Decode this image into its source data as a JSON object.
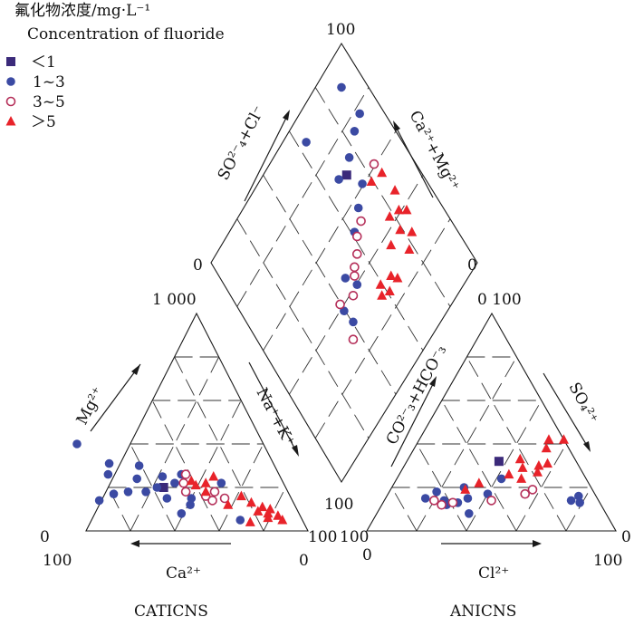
{
  "legend": {
    "title_cn": "氟化物浓度/mg·L⁻¹",
    "title_en": "Concentration of fluoride",
    "items": [
      {
        "label": "＜1",
        "symbol": "square",
        "color": "#3b2a7a"
      },
      {
        "label": "1~3",
        "symbol": "dot",
        "color": "#3b4aa3"
      },
      {
        "label": "3~5",
        "symbol": "open-circle",
        "color": "#b5305a"
      },
      {
        "label": "＞5",
        "symbol": "triangle",
        "color": "#e8232a"
      }
    ]
  },
  "labels": {
    "diamond_top": "100",
    "diamond_left": "0",
    "diamond_right": "0",
    "diamond_bottom": "100",
    "axis_so4cl": "SO²⁻₄+Cl⁻",
    "axis_camg": "Ca²⁺+Mg²⁺",
    "cat_top": "1 000",
    "cat_left_0": "0",
    "cat_right_100": "100",
    "cat_bottom_left": "100",
    "cat_bottom_right": "0",
    "cat_mg": "Mg²⁺",
    "cat_nak": "Na⁺+K⁺",
    "cat_ca": "Ca²⁺",
    "cat_title": "CATICNS",
    "an_top": "0 100",
    "an_left_100": "100",
    "an_right_0": "0",
    "an_bottom_left": "0",
    "an_bottom_right": "100",
    "an_co3": "CO²⁻₃+HCO⁻₃",
    "an_so4": "SO₄²⁺",
    "an_cl": "Cl²⁺",
    "an_title": "ANICNS"
  },
  "colors": {
    "lt1": "#3b2a7a",
    "c13": "#3b4aa3",
    "c35": "#b5305a",
    "gt5": "#e8232a"
  },
  "chart_data": {
    "type": "scatter",
    "subtype": "piper-trilinear",
    "series": [
      {
        "name": "＜1",
        "marker": "square",
        "color": "#3b2a7a",
        "cation_pct_ca_mg": [
          [
            55,
            20
          ]
        ],
        "anion_pct_cl_so4": [
          [
            37,
            32
          ]
        ],
        "diamond_pct_so4cl_camg": [
          [
            72,
            68
          ]
        ]
      },
      {
        "name": "1~3",
        "marker": "dot",
        "color": "#3b4aa3",
        "cation_pct_ca_mg": [
          [
            84,
            40
          ],
          [
            74,
            31
          ],
          [
            77,
            26
          ],
          [
            61,
            30
          ],
          [
            65,
            24
          ],
          [
            53,
            25
          ],
          [
            44,
            26
          ],
          [
            28,
            22
          ],
          [
            87,
            14
          ],
          [
            79,
            17
          ],
          [
            72,
            18
          ],
          [
            64,
            18
          ],
          [
            58,
            20
          ],
          [
            49,
            22
          ],
          [
            56,
            15
          ],
          [
            45,
            15
          ],
          [
            28,
            5
          ],
          [
            53,
            8
          ],
          [
            47,
            12
          ]
        ],
        "anion_pct_cl_so4": [
          [
            16,
            15
          ],
          [
            19,
            18
          ],
          [
            24,
            14
          ],
          [
            26,
            12
          ],
          [
            33,
            15
          ],
          [
            29,
            20
          ],
          [
            40,
            17
          ],
          [
            42,
            24
          ],
          [
            37,
            8
          ],
          [
            75,
            14
          ],
          [
            77,
            16
          ],
          [
            79,
            13
          ],
          [
            30,
            13
          ]
        ],
        "diamond_pct_so4cl_camg": [
          [
            64,
            91
          ],
          [
            91,
            77
          ],
          [
            85,
            75
          ],
          [
            77,
            71
          ],
          [
            68,
            70
          ],
          [
            76,
            60
          ],
          [
            69,
            56
          ],
          [
            62,
            52
          ],
          [
            48,
            45
          ],
          [
            40,
            38
          ],
          [
            51,
            39
          ],
          [
            41,
            32
          ],
          [
            90,
            90
          ]
        ]
      },
      {
        "name": "3~5",
        "marker": "open-circle",
        "color": "#b5305a",
        "cation_pct_ca_mg": [
          [
            45,
            22
          ],
          [
            46,
            18
          ],
          [
            42,
            26
          ],
          [
            38,
            16
          ],
          [
            36,
            14
          ],
          [
            33,
            18
          ],
          [
            30,
            15
          ]
        ],
        "anion_pct_cl_so4": [
          [
            20,
            14
          ],
          [
            43,
            14
          ],
          [
            55,
            17
          ],
          [
            57,
            19
          ],
          [
            28,
            13
          ],
          [
            24,
            12
          ]
        ],
        "diamond_pct_so4cl_camg": [
          [
            67,
            52
          ],
          [
            62,
            50
          ],
          [
            54,
            44
          ],
          [
            58,
            46
          ],
          [
            52,
            42
          ],
          [
            47,
            38
          ],
          [
            40,
            41
          ],
          [
            37,
            28
          ],
          [
            85,
            60
          ]
        ]
      },
      {
        "name": "＞5",
        "marker": "triangle",
        "color": "#e8232a",
        "cation_pct_ca_mg": [
          [
            41,
            23
          ],
          [
            37,
            18
          ],
          [
            40,
            21
          ],
          [
            35,
            22
          ],
          [
            30,
            25
          ],
          [
            22,
            16
          ],
          [
            19,
            13
          ],
          [
            18,
            9
          ],
          [
            15,
            11
          ],
          [
            14,
            8
          ],
          [
            12,
            10
          ],
          [
            10,
            7
          ],
          [
            9,
            5
          ],
          [
            15,
            6
          ],
          [
            24,
            4
          ],
          [
            30,
            12
          ]
        ],
        "anion_pct_cl_so4": [
          [
            45,
            33
          ],
          [
            52,
            42
          ],
          [
            58,
            42
          ],
          [
            53,
            38
          ],
          [
            55,
            27
          ],
          [
            44,
            26
          ],
          [
            34,
            22
          ],
          [
            30,
            19
          ],
          [
            50,
            24
          ],
          [
            48,
            29
          ],
          [
            54,
            30
          ],
          [
            57,
            31
          ]
        ],
        "diamond_pct_so4cl_camg": [
          [
            80,
            57
          ],
          [
            86,
            55
          ],
          [
            87,
            46
          ],
          [
            84,
            40
          ],
          [
            79,
            42
          ],
          [
            87,
            37
          ],
          [
            80,
            35
          ],
          [
            84,
            30
          ],
          [
            79,
            27
          ],
          [
            73,
            35
          ],
          [
            60,
            30
          ],
          [
            66,
            28
          ],
          [
            62,
            25
          ],
          [
            58,
            27
          ],
          [
            68,
            25
          ]
        ]
      }
    ],
    "grid": true,
    "legend_position": "top-left"
  }
}
